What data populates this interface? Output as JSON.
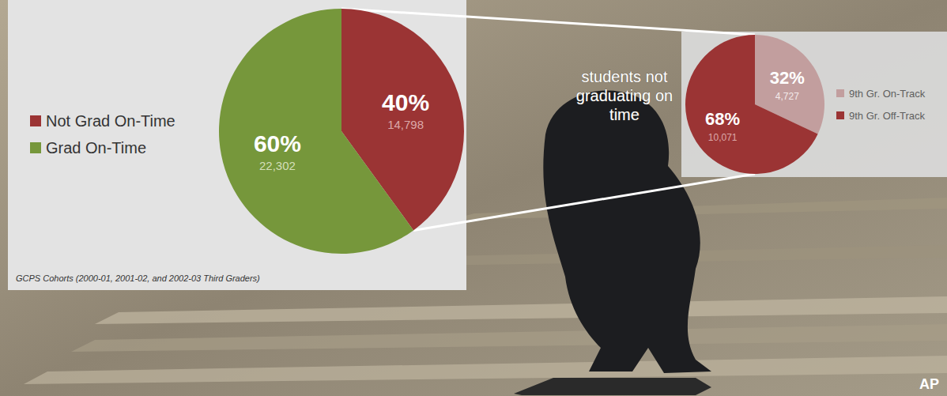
{
  "chart_data": [
    {
      "type": "pie",
      "categories": [
        "Not Grad On-Time",
        "Grad On-Time"
      ],
      "values": [
        40,
        60
      ],
      "value_labels": [
        "40%",
        "60%"
      ],
      "counts": [
        14798,
        22302
      ],
      "colors": [
        "#9b3434",
        "#76973b"
      ],
      "data_labels": true,
      "legend": "left",
      "annotations": [
        "GCPS Cohorts (2000-01, 2001-02, and 2002-03 Third Graders)"
      ]
    },
    {
      "type": "pie",
      "categories": [
        "9th Gr. On-Track",
        "9th Gr. Off-Track"
      ],
      "values": [
        32,
        68
      ],
      "value_labels": [
        "32%",
        "68%"
      ],
      "counts": [
        4727,
        10071
      ],
      "colors": [
        "#c29e9e",
        "#9b3434"
      ],
      "data_labels": true,
      "legend": "right",
      "annotations": [
        "students not graduating on time"
      ]
    }
  ],
  "credit": "AP"
}
